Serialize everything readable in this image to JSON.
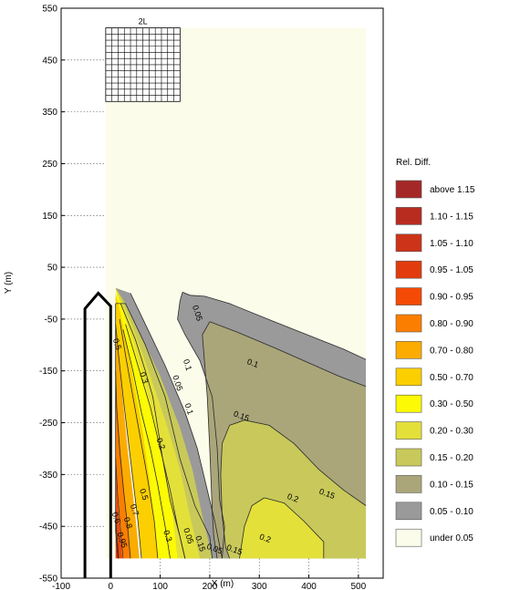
{
  "chart_data": {
    "type": "contour",
    "xlabel": "X (m)",
    "ylabel": "Y (m)",
    "xlim": [
      -100,
      550
    ],
    "ylim": [
      -550,
      550
    ],
    "x_ticks": [
      -100,
      0,
      100,
      200,
      300,
      400,
      500
    ],
    "y_ticks": [
      550,
      450,
      350,
      250,
      150,
      50,
      -50,
      -150,
      -250,
      -350,
      -450,
      -550
    ],
    "grid": "dotted, partial",
    "grid_label": "2L",
    "contour_labels": [
      {
        "text": "0.05",
        "x": 170,
        "y": -40
      },
      {
        "text": "0.1",
        "x": 285,
        "y": -140
      },
      {
        "text": "0.15",
        "x": 262,
        "y": -242
      },
      {
        "text": "0.2",
        "x": 366,
        "y": -400
      },
      {
        "text": "0.15",
        "x": 435,
        "y": -392
      },
      {
        "text": "0.2",
        "x": 310,
        "y": -478
      },
      {
        "text": "0.15",
        "x": 248,
        "y": -500
      },
      {
        "text": "0.05",
        "x": 208,
        "y": -498
      },
      {
        "text": "0.1",
        "x": 150,
        "y": -140
      },
      {
        "text": "0.05",
        "x": 130,
        "y": -175
      },
      {
        "text": "0.1",
        "x": 153,
        "y": -225
      },
      {
        "text": "0.2",
        "x": 96,
        "y": -292
      },
      {
        "text": "0.3",
        "x": 62,
        "y": -165
      },
      {
        "text": "0.5",
        "x": 8,
        "y": -100
      },
      {
        "text": "0.5",
        "x": 62,
        "y": -390
      },
      {
        "text": "0.7",
        "x": 43,
        "y": -420
      },
      {
        "text": "0.8",
        "x": 30,
        "y": -445
      },
      {
        "text": "0.3",
        "x": 110,
        "y": -470
      },
      {
        "text": "0.6",
        "x": 6,
        "y": -435
      },
      {
        "text": "0.95",
        "x": 18,
        "y": -478
      },
      {
        "text": "0.05",
        "x": 152,
        "y": -470
      },
      {
        "text": "0.15",
        "x": 176,
        "y": -485
      }
    ],
    "legend_title": "Rel. Diff.",
    "legend": [
      {
        "label": "above 1.15",
        "color": "#a52828"
      },
      {
        "label": "1.10 - 1.15",
        "color": "#b82c20"
      },
      {
        "label": "1.05 - 1.10",
        "color": "#cc3318"
      },
      {
        "label": "0.95 - 1.05",
        "color": "#e23c0e"
      },
      {
        "label": "0.90 - 0.95",
        "color": "#f54a06"
      },
      {
        "label": "0.80 - 0.90",
        "color": "#fc7e00"
      },
      {
        "label": "0.70 - 0.80",
        "color": "#fcac00"
      },
      {
        "label": "0.50 - 0.70",
        "color": "#fccf00"
      },
      {
        "label": "0.30 - 0.50",
        "color": "#fcfa05"
      },
      {
        "label": "0.20 - 0.30",
        "color": "#e3e03a"
      },
      {
        "label": "0.15 - 0.20",
        "color": "#c8c95a"
      },
      {
        "label": "0.10 - 0.15",
        "color": "#aaa67a"
      },
      {
        "label": "0.05 - 0.10",
        "color": "#9a9a9a"
      },
      {
        "label": "under 0.05",
        "color": "#fcfcea"
      }
    ]
  }
}
